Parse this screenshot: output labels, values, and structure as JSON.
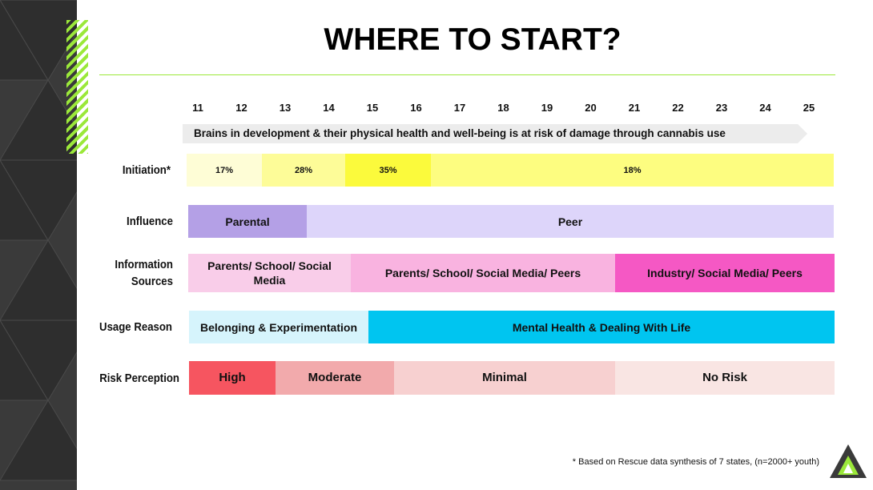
{
  "header": {
    "title": "WHERE TO START?"
  },
  "ages": [
    11,
    12,
    13,
    14,
    15,
    16,
    17,
    18,
    19,
    20,
    21,
    22,
    23,
    24,
    25
  ],
  "banner": "Brains in development & their physical health and well-being is at risk of damage through cannabis use",
  "rows": [
    {
      "label": "Initiation*",
      "segments": [
        {
          "text": "17%",
          "color": "#fefdd6"
        },
        {
          "text": "28%",
          "color": "#fdfc98"
        },
        {
          "text": "35%",
          "color": "#fbfa3c"
        },
        {
          "text": "18%",
          "color": "#fdfd80"
        }
      ]
    },
    {
      "label": "Influence",
      "segments": [
        {
          "text": "Parental",
          "color": "#b4a0e6"
        },
        {
          "text": "Peer",
          "color": "#ddd5fa"
        }
      ]
    },
    {
      "label": "Information Sources",
      "segments": [
        {
          "text": "Parents/ School/ Social Media",
          "color": "#f9cde9"
        },
        {
          "text": "Parents/ School/ Social Media/ Peers",
          "color": "#f9b3e0"
        },
        {
          "text": "Industry/ Social Media/ Peers",
          "color": "#f558c4"
        }
      ]
    },
    {
      "label": "Usage Reason",
      "segments": [
        {
          "text": "Belonging & Experimentation",
          "color": "#d6f4fc"
        },
        {
          "text": "Mental Health & Dealing With Life",
          "color": "#00c5f0"
        }
      ]
    },
    {
      "label": "Risk Perception",
      "segments": [
        {
          "text": "High",
          "color": "#f65560"
        },
        {
          "text": "Moderate",
          "color": "#f2aaac"
        },
        {
          "text": "Minimal",
          "color": "#f7d0d0"
        },
        {
          "text": "No Risk",
          "color": "#f9e5e3"
        }
      ]
    }
  ],
  "footnote": "* Based on Rescue data synthesis of 7 states, (n=2000+ youth)"
}
